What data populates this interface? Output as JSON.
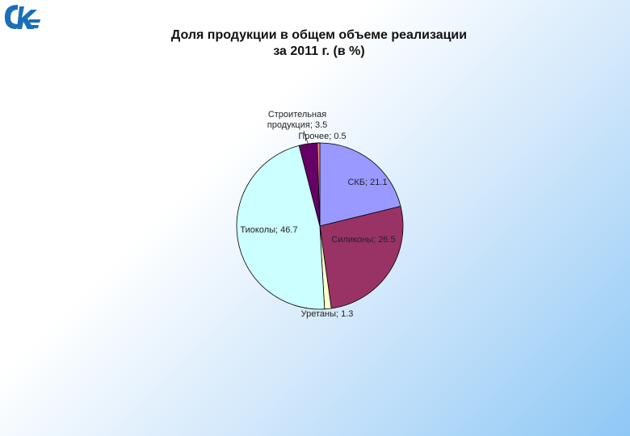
{
  "chart_data": {
    "type": "pie",
    "title": [
      "Доля продукции в общем объеме реализации",
      "за 2011 г. (в %)"
    ],
    "values": [
      21.1,
      26.5,
      1.3,
      46.7,
      3.5,
      0.5
    ],
    "value_labels": [
      "СКБ; 21.1",
      "Силиконы; 26.5",
      "Уретаны; 1.3",
      "Тиоколы; 46.7",
      "Строительная продукция; 3.5",
      "Прочее; 0.5"
    ],
    "colors": [
      "#9999ff",
      "#993366",
      "#ffffcc",
      "#ccffff",
      "#660066",
      "#ff8080"
    ]
  }
}
